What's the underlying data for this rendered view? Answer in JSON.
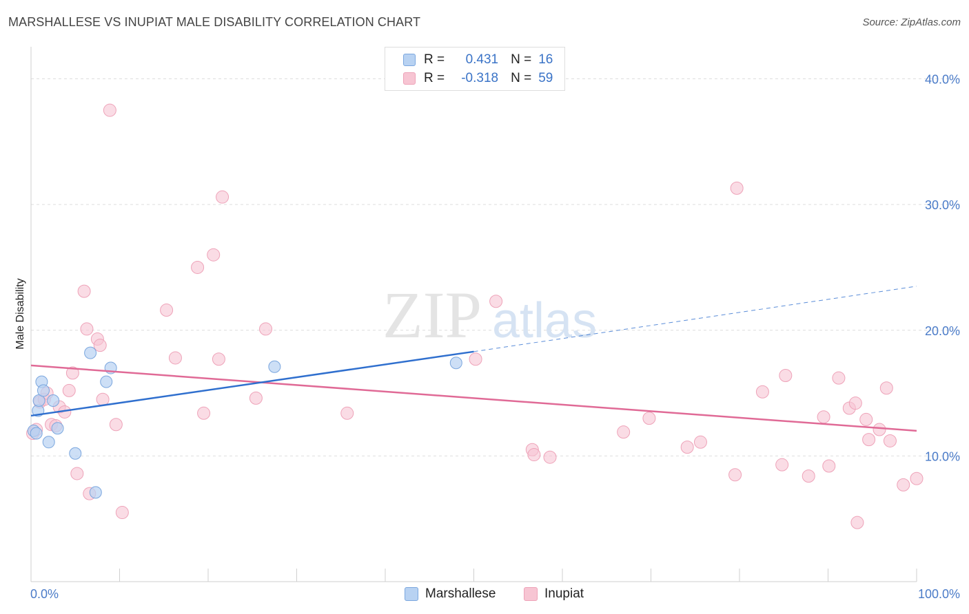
{
  "title": "MARSHALLESE VS INUPIAT MALE DISABILITY CORRELATION CHART",
  "source": "Source: ZipAtlas.com",
  "watermark": {
    "zip": "ZIP",
    "atlas": "atlas"
  },
  "legend": {
    "rows": [
      {
        "r_label": "R =",
        "r_value": "0.431",
        "n_label": "N =",
        "n_value": "16"
      },
      {
        "r_label": "R =",
        "r_value": "-0.318",
        "n_label": "N =",
        "n_value": "59"
      }
    ]
  },
  "bottom_legend": {
    "series1": "Marshallese",
    "series2": "Inupiat"
  },
  "colors": {
    "blue_fill": "#b8d2f2",
    "blue_stroke": "#7aa6de",
    "blue_line": "#2f6fce",
    "pink_fill": "#f7c5d3",
    "pink_stroke": "#eea2b8",
    "pink_line": "#e06a96",
    "tick": "#4a7bc8",
    "grid": "#dddddd"
  },
  "chart_data": {
    "type": "scatter",
    "title": "MARSHALLESE VS INUPIAT MALE DISABILITY CORRELATION CHART",
    "ylabel": "Male Disability",
    "xlim": [
      0,
      100
    ],
    "ylim": [
      0,
      42
    ],
    "x_tick_labels": [
      "0.0%",
      "100.0%"
    ],
    "y_ticks": [
      10,
      20,
      30,
      40
    ],
    "y_tick_labels": [
      "10.0%",
      "20.0%",
      "30.0%",
      "40.0%"
    ],
    "series": [
      {
        "name": "Marshallese",
        "r": 0.431,
        "n": 16,
        "trend": {
          "x0": 0,
          "y0": 13.2,
          "x1": 50,
          "y1": 18.3,
          "dash_to_x": 100,
          "dash_to_y": 23.5
        },
        "points": [
          [
            0.3,
            12.0
          ],
          [
            0.6,
            11.8
          ],
          [
            0.8,
            13.6
          ],
          [
            0.9,
            14.4
          ],
          [
            1.2,
            15.9
          ],
          [
            1.4,
            15.2
          ],
          [
            2.0,
            11.1
          ],
          [
            2.5,
            14.4
          ],
          [
            3.0,
            12.2
          ],
          [
            5.0,
            10.2
          ],
          [
            6.7,
            18.2
          ],
          [
            7.3,
            7.1
          ],
          [
            8.5,
            15.9
          ],
          [
            9.0,
            17.0
          ],
          [
            27.5,
            17.1
          ],
          [
            48.0,
            17.4
          ]
        ]
      },
      {
        "name": "Inupiat",
        "r": -0.318,
        "n": 59,
        "trend": {
          "x0": 0,
          "y0": 17.2,
          "x1": 100,
          "y1": 12.0
        },
        "points": [
          [
            0.2,
            11.8
          ],
          [
            0.6,
            12.1
          ],
          [
            1.0,
            14.3
          ],
          [
            1.5,
            14.5
          ],
          [
            1.8,
            15.0
          ],
          [
            2.3,
            12.5
          ],
          [
            2.8,
            12.4
          ],
          [
            3.2,
            13.9
          ],
          [
            3.8,
            13.5
          ],
          [
            4.3,
            15.2
          ],
          [
            4.7,
            16.6
          ],
          [
            5.2,
            8.6
          ],
          [
            6.0,
            23.1
          ],
          [
            6.3,
            20.1
          ],
          [
            6.6,
            7.0
          ],
          [
            7.5,
            19.3
          ],
          [
            7.8,
            18.8
          ],
          [
            8.1,
            14.5
          ],
          [
            8.9,
            37.5
          ],
          [
            9.6,
            12.5
          ],
          [
            10.3,
            5.5
          ],
          [
            15.3,
            21.6
          ],
          [
            16.3,
            17.8
          ],
          [
            18.8,
            25.0
          ],
          [
            19.5,
            13.4
          ],
          [
            20.6,
            26.0
          ],
          [
            21.2,
            17.7
          ],
          [
            21.6,
            30.6
          ],
          [
            25.4,
            14.6
          ],
          [
            26.5,
            20.1
          ],
          [
            35.7,
            13.4
          ],
          [
            50.2,
            17.7
          ],
          [
            52.5,
            22.3
          ],
          [
            56.6,
            10.5
          ],
          [
            56.8,
            10.1
          ],
          [
            58.6,
            9.9
          ],
          [
            66.9,
            11.9
          ],
          [
            69.8,
            13.0
          ],
          [
            74.1,
            10.7
          ],
          [
            75.6,
            11.1
          ],
          [
            79.5,
            8.5
          ],
          [
            79.7,
            31.3
          ],
          [
            82.6,
            15.1
          ],
          [
            84.8,
            9.3
          ],
          [
            85.2,
            16.4
          ],
          [
            87.8,
            8.4
          ],
          [
            89.5,
            13.1
          ],
          [
            90.1,
            9.2
          ],
          [
            91.2,
            16.2
          ],
          [
            92.4,
            13.8
          ],
          [
            93.1,
            14.2
          ],
          [
            94.3,
            12.9
          ],
          [
            94.6,
            11.3
          ],
          [
            95.8,
            12.1
          ],
          [
            96.6,
            15.4
          ],
          [
            97.0,
            11.2
          ],
          [
            93.3,
            4.7
          ],
          [
            98.5,
            7.7
          ],
          [
            100.0,
            8.2
          ]
        ]
      }
    ]
  }
}
